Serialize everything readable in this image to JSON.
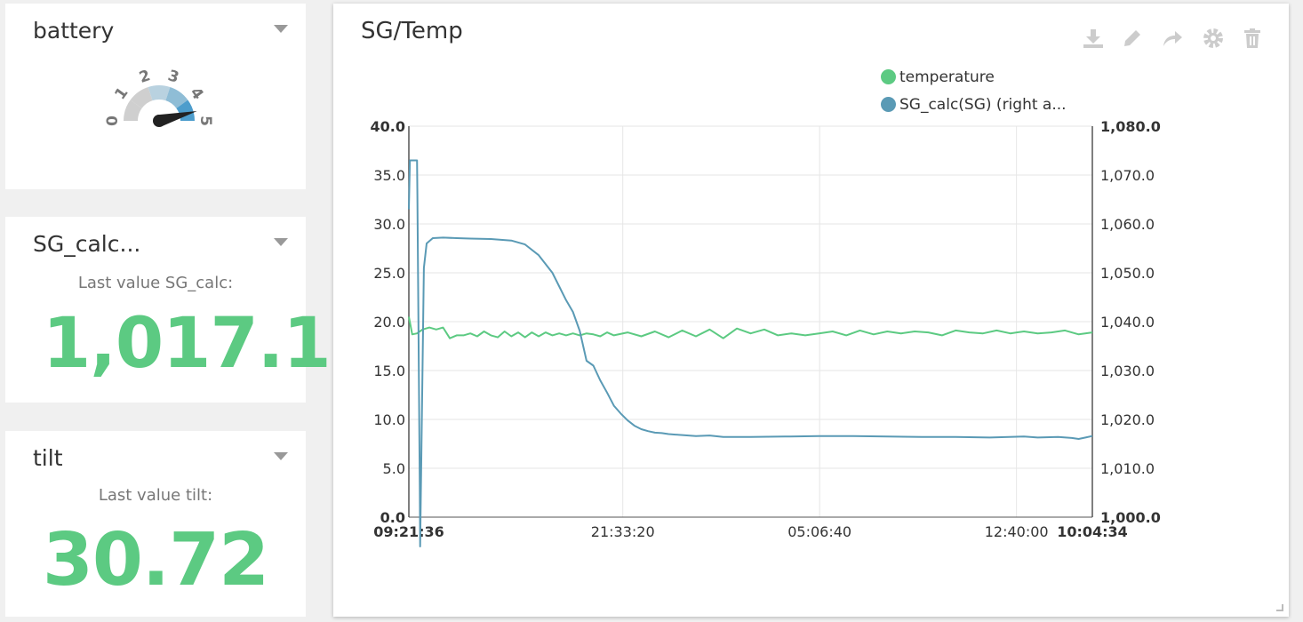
{
  "battery": {
    "title": "battery",
    "gauge": {
      "min": 0,
      "max": 5,
      "value": 4.6,
      "ticks": [
        "0",
        "1",
        "2",
        "3",
        "4",
        "5"
      ]
    }
  },
  "sg_widget": {
    "title": "SG_calc...",
    "label": "Last value SG_calc:",
    "value": "1,017.1"
  },
  "tilt_widget": {
    "title": "tilt",
    "label": "Last value tilt:",
    "value": "30.72"
  },
  "chart": {
    "title": "SG/Temp",
    "toolbar": [
      "download-icon",
      "pencil-icon",
      "share-icon",
      "gear-icon",
      "trash-icon"
    ],
    "legend": [
      {
        "label": "temperature",
        "color": "#5cca82"
      },
      {
        "label": "SG_calc(SG) (right a...",
        "color": "#5a9ab5"
      }
    ]
  },
  "chart_data": {
    "type": "line",
    "x_tick_labels": [
      "09:21:36",
      "21:33:20",
      "05:06:40",
      "12:40:00",
      "10:04:34"
    ],
    "y_left": {
      "ticks": [
        "0.0",
        "5.0",
        "10.0",
        "15.0",
        "20.0",
        "25.0",
        "30.0",
        "35.0",
        "40.0"
      ],
      "range": [
        0,
        40
      ]
    },
    "y_right": {
      "ticks": [
        "1,000.0",
        "1,010.0",
        "1,020.0",
        "1,030.0",
        "1,040.0",
        "1,050.0",
        "1,060.0",
        "1,070.0",
        "1,080.0"
      ],
      "range": [
        1000,
        1080
      ]
    },
    "grid": true,
    "legend_position": "top-right",
    "series": [
      {
        "name": "temperature",
        "axis": "left",
        "color": "#5cca82",
        "x": [
          0,
          0.005,
          0.012,
          0.02,
          0.03,
          0.04,
          0.05,
          0.06,
          0.07,
          0.08,
          0.09,
          0.1,
          0.11,
          0.12,
          0.13,
          0.14,
          0.15,
          0.16,
          0.17,
          0.18,
          0.19,
          0.2,
          0.21,
          0.22,
          0.23,
          0.24,
          0.25,
          0.26,
          0.27,
          0.28,
          0.29,
          0.3,
          0.32,
          0.34,
          0.36,
          0.38,
          0.4,
          0.42,
          0.44,
          0.46,
          0.48,
          0.5,
          0.52,
          0.54,
          0.56,
          0.58,
          0.6,
          0.62,
          0.64,
          0.66,
          0.68,
          0.7,
          0.72,
          0.74,
          0.76,
          0.78,
          0.8,
          0.82,
          0.84,
          0.86,
          0.88,
          0.9,
          0.92,
          0.94,
          0.96,
          0.98,
          1.0
        ],
        "values": [
          20.5,
          18.7,
          18.8,
          19.2,
          19.4,
          19.2,
          19.4,
          18.3,
          18.6,
          18.6,
          18.8,
          18.5,
          19.0,
          18.6,
          18.4,
          19.0,
          18.5,
          18.9,
          18.4,
          18.9,
          18.5,
          18.9,
          18.6,
          18.8,
          18.6,
          18.8,
          18.6,
          18.8,
          18.7,
          18.5,
          18.9,
          18.6,
          18.9,
          18.5,
          19.0,
          18.4,
          19.1,
          18.5,
          19.2,
          18.3,
          19.3,
          18.8,
          19.2,
          18.6,
          18.8,
          18.6,
          18.8,
          19.0,
          18.6,
          19.1,
          18.7,
          19.0,
          18.8,
          19.0,
          18.9,
          18.6,
          19.1,
          18.9,
          18.8,
          19.1,
          18.8,
          19.0,
          18.8,
          18.9,
          19.1,
          18.7,
          18.9
        ]
      },
      {
        "name": "SG_calc(SG)",
        "axis": "right",
        "color": "#5a9ab5",
        "x": [
          0,
          0.0015,
          0.004,
          0.012,
          0.0125,
          0.016,
          0.0165,
          0.022,
          0.026,
          0.035,
          0.05,
          0.07,
          0.09,
          0.12,
          0.15,
          0.17,
          0.19,
          0.21,
          0.23,
          0.24,
          0.25,
          0.26,
          0.27,
          0.28,
          0.29,
          0.3,
          0.31,
          0.32,
          0.33,
          0.34,
          0.35,
          0.36,
          0.37,
          0.38,
          0.39,
          0.4,
          0.42,
          0.44,
          0.46,
          0.5,
          0.55,
          0.6,
          0.65,
          0.7,
          0.75,
          0.8,
          0.85,
          0.9,
          0.92,
          0.95,
          0.97,
          0.98,
          0.99,
          1.0
        ],
        "values": [
          1063,
          1073,
          1073,
          1073,
          1066,
          1006,
          994,
          1051,
          1056,
          1057.1,
          1057.2,
          1057.1,
          1057.0,
          1056.9,
          1056.6,
          1055.8,
          1053.6,
          1050.0,
          1044.4,
          1042.0,
          1038.1,
          1032.0,
          1031.0,
          1028.0,
          1025.5,
          1022.8,
          1021.2,
          1019.8,
          1018.7,
          1018.0,
          1017.6,
          1017.3,
          1017.2,
          1017.0,
          1016.9,
          1016.8,
          1016.6,
          1016.7,
          1016.4,
          1016.4,
          1016.5,
          1016.6,
          1016.6,
          1016.5,
          1016.4,
          1016.4,
          1016.3,
          1016.5,
          1016.3,
          1016.4,
          1016.2,
          1016.0,
          1016.3,
          1016.6
        ]
      }
    ]
  }
}
